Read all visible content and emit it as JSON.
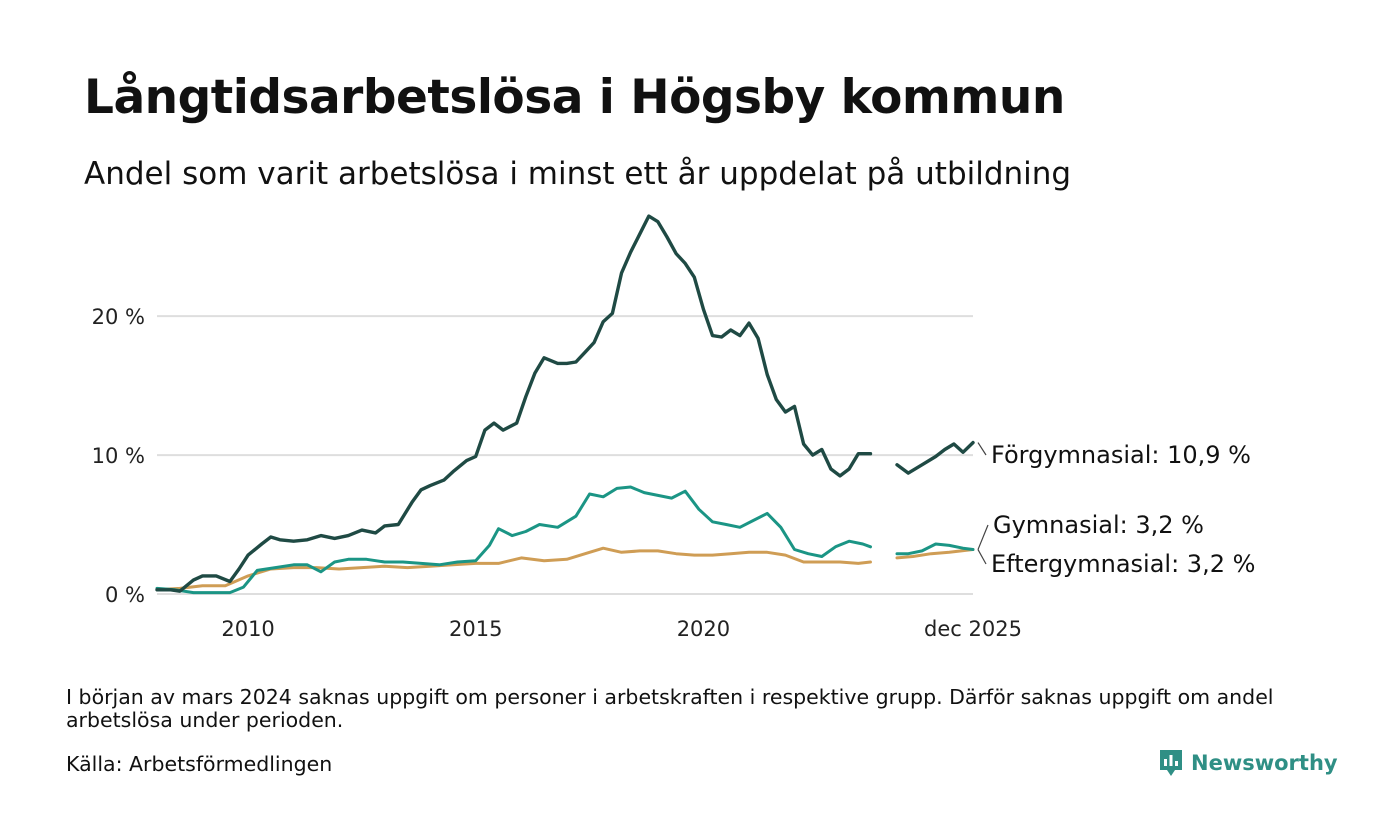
{
  "title": "Långtidsarbetslösa i Högsby kommun",
  "subtitle": "Andel som varit arbetslösa i minst ett år uppdelat på utbildning",
  "note": "I början av mars 2024 saknas uppgift om personer i arbetskraften i respektive grupp. Därför saknas uppgift om andel arbetslösa under perioden.",
  "source": "Källa: Arbetsförmedlingen",
  "brand": {
    "name": "Newsworthy",
    "icon": "newsworthy-logo-icon",
    "color": "#2f8f85"
  },
  "chart_data": {
    "type": "line",
    "title": "Långtidsarbetslösa i Högsby kommun",
    "xlabel": "",
    "ylabel": "",
    "x_range": [
      2008.0,
      2025.92
    ],
    "ylim": [
      0,
      28
    ],
    "y_ticks": [
      {
        "value": 0,
        "label": "0 %"
      },
      {
        "value": 10,
        "label": "10 %"
      },
      {
        "value": 20,
        "label": "20 %"
      }
    ],
    "x_ticks": [
      {
        "value": 2010,
        "label": "2010"
      },
      {
        "value": 2015,
        "label": "2015"
      },
      {
        "value": 2020,
        "label": "2020"
      },
      {
        "value": 2025.92,
        "label": "dec 2025"
      }
    ],
    "grid": true,
    "gap": [
      2023.67,
      2024.25
    ],
    "series": [
      {
        "name": "Förgymnasial",
        "label": "Förgymnasial: 10,9 %",
        "color": "#1f4a44",
        "width": 3.4,
        "points": [
          [
            2008.0,
            0.3
          ],
          [
            2008.3,
            0.3
          ],
          [
            2008.5,
            0.2
          ],
          [
            2008.8,
            1.0
          ],
          [
            2009.0,
            1.3
          ],
          [
            2009.3,
            1.3
          ],
          [
            2009.6,
            0.9
          ],
          [
            2009.8,
            1.8
          ],
          [
            2010.0,
            2.8
          ],
          [
            2010.3,
            3.6
          ],
          [
            2010.5,
            4.1
          ],
          [
            2010.7,
            3.9
          ],
          [
            2011.0,
            3.8
          ],
          [
            2011.3,
            3.9
          ],
          [
            2011.6,
            4.2
          ],
          [
            2011.9,
            4.0
          ],
          [
            2012.2,
            4.2
          ],
          [
            2012.5,
            4.6
          ],
          [
            2012.8,
            4.4
          ],
          [
            2013.0,
            4.9
          ],
          [
            2013.3,
            5.0
          ],
          [
            2013.6,
            6.6
          ],
          [
            2013.8,
            7.5
          ],
          [
            2014.0,
            7.8
          ],
          [
            2014.3,
            8.2
          ],
          [
            2014.5,
            8.8
          ],
          [
            2014.8,
            9.6
          ],
          [
            2015.0,
            9.9
          ],
          [
            2015.2,
            11.8
          ],
          [
            2015.4,
            12.3
          ],
          [
            2015.6,
            11.8
          ],
          [
            2015.9,
            12.3
          ],
          [
            2016.1,
            14.2
          ],
          [
            2016.3,
            15.9
          ],
          [
            2016.5,
            17.0
          ],
          [
            2016.8,
            16.6
          ],
          [
            2017.0,
            16.6
          ],
          [
            2017.2,
            16.7
          ],
          [
            2017.4,
            17.4
          ],
          [
            2017.6,
            18.1
          ],
          [
            2017.8,
            19.6
          ],
          [
            2018.0,
            20.2
          ],
          [
            2018.2,
            23.1
          ],
          [
            2018.4,
            24.6
          ],
          [
            2018.6,
            25.9
          ],
          [
            2018.8,
            27.2
          ],
          [
            2019.0,
            26.8
          ],
          [
            2019.2,
            25.7
          ],
          [
            2019.4,
            24.5
          ],
          [
            2019.6,
            23.8
          ],
          [
            2019.8,
            22.8
          ],
          [
            2020.0,
            20.5
          ],
          [
            2020.2,
            18.6
          ],
          [
            2020.4,
            18.5
          ],
          [
            2020.6,
            19.0
          ],
          [
            2020.8,
            18.6
          ],
          [
            2021.0,
            19.5
          ],
          [
            2021.2,
            18.4
          ],
          [
            2021.4,
            15.8
          ],
          [
            2021.6,
            14.0
          ],
          [
            2021.8,
            13.1
          ],
          [
            2022.0,
            13.5
          ],
          [
            2022.2,
            10.8
          ],
          [
            2022.4,
            10.0
          ],
          [
            2022.6,
            10.4
          ],
          [
            2022.8,
            9.0
          ],
          [
            2023.0,
            8.5
          ],
          [
            2023.2,
            9.0
          ],
          [
            2023.4,
            10.1
          ],
          [
            2023.67,
            10.1
          ],
          null,
          [
            2024.25,
            9.3
          ],
          [
            2024.5,
            8.7
          ],
          [
            2024.8,
            9.3
          ],
          [
            2025.1,
            9.9
          ],
          [
            2025.3,
            10.4
          ],
          [
            2025.5,
            10.8
          ],
          [
            2025.7,
            10.2
          ],
          [
            2025.92,
            10.9
          ]
        ]
      },
      {
        "name": "Gymnasial",
        "label": "Gymnasial:  3,2 %",
        "color": "#1b9585",
        "width": 3.0,
        "points": [
          [
            2008.0,
            0.4
          ],
          [
            2008.4,
            0.3
          ],
          [
            2008.8,
            0.1
          ],
          [
            2009.2,
            0.1
          ],
          [
            2009.6,
            0.1
          ],
          [
            2009.9,
            0.5
          ],
          [
            2010.2,
            1.7
          ],
          [
            2010.6,
            1.9
          ],
          [
            2011.0,
            2.1
          ],
          [
            2011.3,
            2.1
          ],
          [
            2011.6,
            1.6
          ],
          [
            2011.9,
            2.3
          ],
          [
            2012.2,
            2.5
          ],
          [
            2012.6,
            2.5
          ],
          [
            2013.0,
            2.3
          ],
          [
            2013.4,
            2.3
          ],
          [
            2013.8,
            2.2
          ],
          [
            2014.2,
            2.1
          ],
          [
            2014.6,
            2.3
          ],
          [
            2015.0,
            2.4
          ],
          [
            2015.3,
            3.5
          ],
          [
            2015.5,
            4.7
          ],
          [
            2015.8,
            4.2
          ],
          [
            2016.1,
            4.5
          ],
          [
            2016.4,
            5.0
          ],
          [
            2016.8,
            4.8
          ],
          [
            2017.2,
            5.6
          ],
          [
            2017.5,
            7.2
          ],
          [
            2017.8,
            7.0
          ],
          [
            2018.1,
            7.6
          ],
          [
            2018.4,
            7.7
          ],
          [
            2018.7,
            7.3
          ],
          [
            2019.0,
            7.1
          ],
          [
            2019.3,
            6.9
          ],
          [
            2019.6,
            7.4
          ],
          [
            2019.9,
            6.1
          ],
          [
            2020.2,
            5.2
          ],
          [
            2020.5,
            5.0
          ],
          [
            2020.8,
            4.8
          ],
          [
            2021.1,
            5.3
          ],
          [
            2021.4,
            5.8
          ],
          [
            2021.7,
            4.8
          ],
          [
            2022.0,
            3.2
          ],
          [
            2022.3,
            2.9
          ],
          [
            2022.6,
            2.7
          ],
          [
            2022.9,
            3.4
          ],
          [
            2023.2,
            3.8
          ],
          [
            2023.5,
            3.6
          ],
          [
            2023.67,
            3.4
          ],
          null,
          [
            2024.25,
            2.9
          ],
          [
            2024.5,
            2.9
          ],
          [
            2024.8,
            3.1
          ],
          [
            2025.1,
            3.6
          ],
          [
            2025.4,
            3.5
          ],
          [
            2025.7,
            3.3
          ],
          [
            2025.92,
            3.2
          ]
        ]
      },
      {
        "name": "Eftergymnasial",
        "label": "Eftergymnasial:  3,2 %",
        "color": "#cf9d55",
        "width": 3.0,
        "points": [
          [
            2008.0,
            0.3
          ],
          [
            2008.5,
            0.4
          ],
          [
            2009.0,
            0.6
          ],
          [
            2009.5,
            0.6
          ],
          [
            2010.0,
            1.3
          ],
          [
            2010.5,
            1.8
          ],
          [
            2011.0,
            1.9
          ],
          [
            2011.5,
            1.9
          ],
          [
            2012.0,
            1.8
          ],
          [
            2012.5,
            1.9
          ],
          [
            2013.0,
            2.0
          ],
          [
            2013.5,
            1.9
          ],
          [
            2014.0,
            2.0
          ],
          [
            2014.5,
            2.1
          ],
          [
            2015.0,
            2.2
          ],
          [
            2015.5,
            2.2
          ],
          [
            2016.0,
            2.6
          ],
          [
            2016.5,
            2.4
          ],
          [
            2017.0,
            2.5
          ],
          [
            2017.5,
            3.0
          ],
          [
            2017.8,
            3.3
          ],
          [
            2018.2,
            3.0
          ],
          [
            2018.6,
            3.1
          ],
          [
            2019.0,
            3.1
          ],
          [
            2019.4,
            2.9
          ],
          [
            2019.8,
            2.8
          ],
          [
            2020.2,
            2.8
          ],
          [
            2020.6,
            2.9
          ],
          [
            2021.0,
            3.0
          ],
          [
            2021.4,
            3.0
          ],
          [
            2021.8,
            2.8
          ],
          [
            2022.2,
            2.3
          ],
          [
            2022.6,
            2.3
          ],
          [
            2023.0,
            2.3
          ],
          [
            2023.4,
            2.2
          ],
          [
            2023.67,
            2.3
          ],
          null,
          [
            2024.25,
            2.6
          ],
          [
            2024.6,
            2.7
          ],
          [
            2025.0,
            2.9
          ],
          [
            2025.4,
            3.0
          ],
          [
            2025.92,
            3.2
          ]
        ]
      }
    ]
  }
}
